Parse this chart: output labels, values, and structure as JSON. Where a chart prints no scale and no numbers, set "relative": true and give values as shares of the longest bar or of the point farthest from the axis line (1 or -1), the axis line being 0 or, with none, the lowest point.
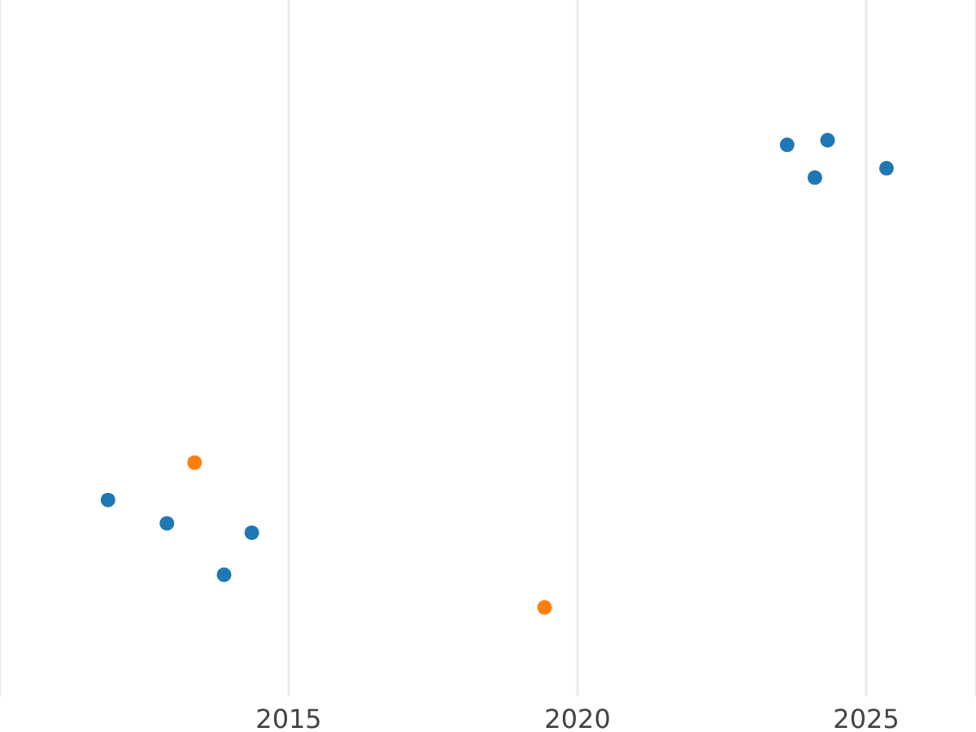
{
  "chart_data": {
    "type": "scatter",
    "relative": true,
    "xlim": [
      2010,
      2026.9
    ],
    "xticks": [
      2015,
      2020,
      2025
    ],
    "grid": "x",
    "marker": "circle",
    "tick_labels": "x",
    "series": [
      {
        "color": "#1f77b4",
        "x": [
          2011.87,
          2012.89,
          2013.88,
          2014.36,
          2023.63,
          2024.11,
          2024.33,
          2025.35
        ],
        "values": [
          0.23,
          0.18,
          0.07,
          0.16,
          0.99,
          0.92,
          1,
          0.94
        ]
      },
      {
        "color": "#ff7f0e",
        "x": [
          2013.37,
          2019.43
        ],
        "values": [
          0.31,
          0
        ]
      }
    ]
  }
}
